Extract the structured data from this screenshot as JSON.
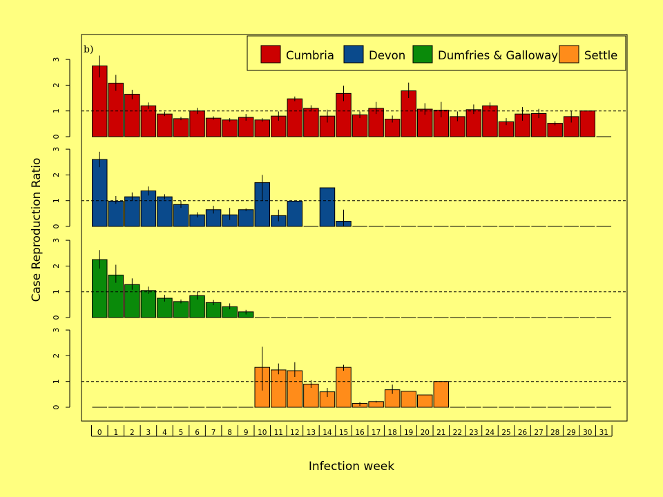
{
  "chart_data": {
    "type": "bar",
    "panel_label": "b)",
    "ylabel": "Case Reproduction Ratio",
    "xlabel": "Infection week",
    "reference_line": 1,
    "ylim": [
      0,
      3
    ],
    "yticks": [
      0,
      1,
      2,
      3
    ],
    "categories": [
      "0",
      "1",
      "2",
      "3",
      "4",
      "5",
      "6",
      "7",
      "8",
      "9",
      "10",
      "11",
      "12",
      "13",
      "14",
      "15",
      "16",
      "17",
      "18",
      "19",
      "20",
      "21",
      "22",
      "23",
      "24",
      "25",
      "26",
      "27",
      "28",
      "29",
      "30",
      "31"
    ],
    "legend": {
      "placement": "top-right",
      "entries": [
        "Cumbria",
        "Devon",
        "Dumfries & Galloway",
        "Settle"
      ]
    },
    "series": [
      {
        "name": "Cumbria",
        "color": "#CC0000",
        "values": [
          2.75,
          2.08,
          1.65,
          1.2,
          0.88,
          0.7,
          1.0,
          0.72,
          0.65,
          0.75,
          0.65,
          0.8,
          1.47,
          1.1,
          0.8,
          1.68,
          0.85,
          1.1,
          0.68,
          1.78,
          1.07,
          1.03,
          0.78,
          1.05,
          1.2,
          0.58,
          0.88,
          0.9,
          0.52,
          0.78,
          1.0,
          0
        ],
        "err_low": [
          2.3,
          1.78,
          1.45,
          1.08,
          0.8,
          0.64,
          0.88,
          0.66,
          0.58,
          0.62,
          0.58,
          0.62,
          1.38,
          0.98,
          0.55,
          1.38,
          0.72,
          0.88,
          0.55,
          1.5,
          0.85,
          0.75,
          0.6,
          0.88,
          1.08,
          0.45,
          0.62,
          0.72,
          0.44,
          0.55,
          1.0,
          0
        ],
        "err_high": [
          3.15,
          2.4,
          1.82,
          1.33,
          0.97,
          0.77,
          1.12,
          0.79,
          0.72,
          0.88,
          0.72,
          0.98,
          1.56,
          1.22,
          1.05,
          1.98,
          0.98,
          1.35,
          0.82,
          2.1,
          1.3,
          1.35,
          0.98,
          1.25,
          1.33,
          0.72,
          1.15,
          1.08,
          0.6,
          1.0,
          1.0,
          0
        ]
      },
      {
        "name": "Devon",
        "color": "#0A4A8C",
        "values": [
          2.6,
          0.98,
          1.15,
          1.38,
          1.15,
          0.85,
          0.45,
          0.65,
          0.45,
          0.65,
          1.7,
          0.42,
          0.98,
          0,
          1.5,
          0.2,
          0,
          0,
          0,
          0,
          0,
          0,
          0,
          0,
          0,
          0,
          0,
          0,
          0,
          0,
          0,
          0
        ],
        "err_low": [
          2.3,
          0.88,
          1.0,
          1.2,
          1.05,
          0.72,
          0.35,
          0.5,
          0.25,
          0.6,
          1.0,
          0.2,
          0.98,
          0,
          1.5,
          0,
          0,
          0,
          0,
          0,
          0,
          0,
          0,
          0,
          0,
          0,
          0,
          0,
          0,
          0,
          0,
          0
        ],
        "err_high": [
          2.9,
          1.18,
          1.32,
          1.55,
          1.25,
          1.0,
          0.55,
          0.8,
          0.72,
          0.7,
          2.0,
          0.65,
          0.98,
          0,
          1.5,
          0.65,
          0,
          0,
          0,
          0,
          0,
          0,
          0,
          0,
          0,
          0,
          0,
          0,
          0,
          0,
          0,
          0
        ]
      },
      {
        "name": "Dumfries & Galloway",
        "color": "#0A8A0A",
        "values": [
          2.25,
          1.65,
          1.28,
          1.05,
          0.75,
          0.62,
          0.85,
          0.58,
          0.42,
          0.22,
          0,
          0,
          0,
          0,
          0,
          0,
          0,
          0,
          0,
          0,
          0,
          0,
          0,
          0,
          0,
          0,
          0,
          0,
          0,
          0,
          0,
          0
        ],
        "err_low": [
          1.9,
          1.35,
          1.08,
          0.92,
          0.62,
          0.55,
          0.7,
          0.48,
          0.32,
          0.12,
          0,
          0,
          0,
          0,
          0,
          0,
          0,
          0,
          0,
          0,
          0,
          0,
          0,
          0,
          0,
          0,
          0,
          0,
          0,
          0,
          0,
          0
        ],
        "err_high": [
          2.62,
          2.05,
          1.52,
          1.2,
          0.88,
          0.7,
          1.0,
          0.68,
          0.55,
          0.3,
          0,
          0,
          0,
          0,
          0,
          0,
          0,
          0,
          0,
          0,
          0,
          0,
          0,
          0,
          0,
          0,
          0,
          0,
          0,
          0,
          0,
          0
        ]
      },
      {
        "name": "Settle",
        "color": "#FF8C1A",
        "values": [
          0,
          0,
          0,
          0,
          0,
          0,
          0,
          0,
          0,
          0,
          1.55,
          1.45,
          1.42,
          0.9,
          0.6,
          1.55,
          0.15,
          0.22,
          0.68,
          0.62,
          0.48,
          1.0,
          0,
          0,
          0,
          0,
          0,
          0,
          0,
          0,
          0,
          0
        ],
        "err_low": [
          0,
          0,
          0,
          0,
          0,
          0,
          0,
          0,
          0,
          0,
          0.65,
          1.28,
          1.18,
          0.75,
          0.4,
          1.42,
          0.05,
          0.18,
          0.52,
          0.62,
          0.48,
          1.0,
          0,
          0,
          0,
          0,
          0,
          0,
          0,
          0,
          0,
          0
        ],
        "err_high": [
          0,
          0,
          0,
          0,
          0,
          0,
          0,
          0,
          0,
          0,
          2.35,
          1.7,
          1.75,
          1.05,
          0.75,
          1.65,
          0.2,
          0.25,
          0.88,
          0.62,
          0.48,
          1.0,
          0,
          0,
          0,
          0,
          0,
          0,
          0,
          0,
          0,
          0
        ]
      }
    ]
  }
}
